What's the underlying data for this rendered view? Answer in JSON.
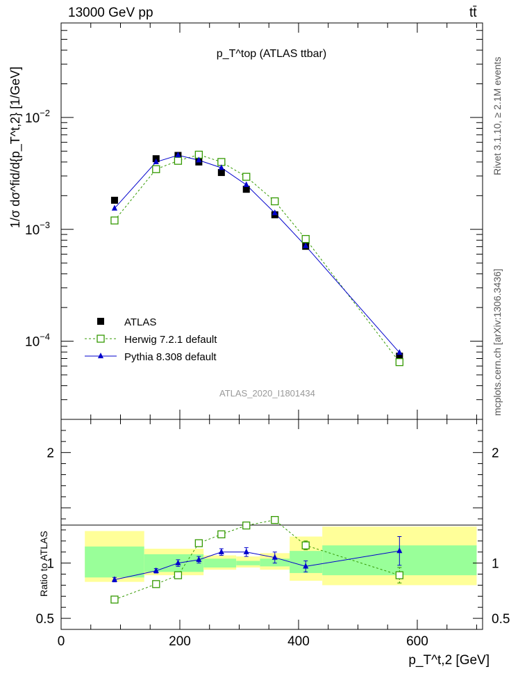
{
  "header": {
    "energy_label": "13000 GeV pp",
    "process_label": "tt̄"
  },
  "side_labels": {
    "rivet": "Rivet 3.1.10, ≥ 2.1M events",
    "mcplots": "mcplots.cern.ch [arXiv:1306.3436]"
  },
  "chart_data": [
    {
      "type": "line",
      "panel": "main",
      "title": "p_T^top (ATLAS ttbar)",
      "watermark": "ATLAS_2020_I1801434",
      "ylabel": "1/σ dσ^fid/d{p_T^t,2} [1/GeV]",
      "y_scale": "log",
      "ylim": [
        2e-05,
        0.07
      ],
      "xlim": [
        0,
        710
      ],
      "y_ticks": [
        "10^-4",
        "10^-3",
        "10^-2"
      ],
      "legend_position": "middle-left",
      "series": [
        {
          "name": "ATLAS",
          "marker": "filled-square",
          "color": "#000000",
          "x": [
            90,
            160,
            197,
            232,
            270,
            312,
            360,
            412,
            570
          ],
          "y": [
            0.00182,
            0.00428,
            0.00458,
            0.004,
            0.00322,
            0.00228,
            0.00135,
            0.000705,
            7.35e-05
          ]
        },
        {
          "name": "Herwig 7.2.1 default",
          "marker": "open-square",
          "line": "dashed",
          "color": "#339900",
          "x": [
            90,
            160,
            197,
            232,
            270,
            312,
            360,
            412,
            570
          ],
          "y": [
            0.0012,
            0.00345,
            0.0041,
            0.00465,
            0.004,
            0.00295,
            0.00178,
            0.00082,
            6.5e-05
          ]
        },
        {
          "name": "Pythia 8.308 default",
          "marker": "filled-triangle",
          "line": "solid",
          "color": "#0000cc",
          "x": [
            90,
            160,
            197,
            232,
            270,
            312,
            360,
            412,
            570
          ],
          "y": [
            0.00154,
            0.004,
            0.0046,
            0.00415,
            0.00355,
            0.0025,
            0.0014,
            0.00071,
            7.9e-05
          ]
        }
      ]
    },
    {
      "type": "line",
      "panel": "ratio",
      "ylabel": "Ratio to ATLAS",
      "xlabel": "p_T^t,2 [GeV]",
      "ylim": [
        0.4,
        2.3
      ],
      "xlim": [
        0,
        710
      ],
      "x_ticks": [
        0,
        200,
        400,
        600
      ],
      "y_ticks": [
        0.5,
        1,
        2
      ],
      "uncertainty_bands": {
        "bin_edges": [
          40,
          140,
          240,
          295,
          335,
          385,
          440,
          700
        ],
        "stat_low": [
          0.87,
          0.92,
          0.96,
          0.98,
          0.97,
          0.91,
          0.89
        ],
        "stat_high": [
          1.15,
          1.08,
          1.04,
          1.02,
          1.04,
          1.11,
          1.16
        ],
        "total_low": [
          0.83,
          0.89,
          0.94,
          0.96,
          0.94,
          0.84,
          0.8
        ],
        "total_high": [
          1.29,
          1.13,
          1.07,
          1.06,
          1.09,
          1.24,
          1.33
        ],
        "bin_edges_total": [
          40,
          140,
          240,
          295,
          335,
          385,
          440,
          700
        ]
      },
      "series": [
        {
          "name": "Herwig 7.2.1 default",
          "x": [
            90,
            160,
            197,
            232,
            270,
            312,
            360,
            412,
            570
          ],
          "y": [
            0.67,
            0.81,
            0.89,
            1.18,
            1.26,
            1.34,
            1.39,
            1.16,
            0.89
          ],
          "err": [
            0.01,
            0.01,
            0.01,
            0.02,
            0.02,
            0.02,
            0.03,
            0.04,
            0.07
          ]
        },
        {
          "name": "Pythia 8.308 default",
          "x": [
            90,
            160,
            197,
            232,
            270,
            312,
            360,
            412,
            570
          ],
          "y": [
            0.85,
            0.93,
            1.0,
            1.03,
            1.1,
            1.1,
            1.05,
            0.97,
            1.11
          ],
          "err": [
            0.02,
            0.02,
            0.03,
            0.03,
            0.03,
            0.04,
            0.05,
            0.05,
            0.13
          ]
        }
      ]
    }
  ]
}
